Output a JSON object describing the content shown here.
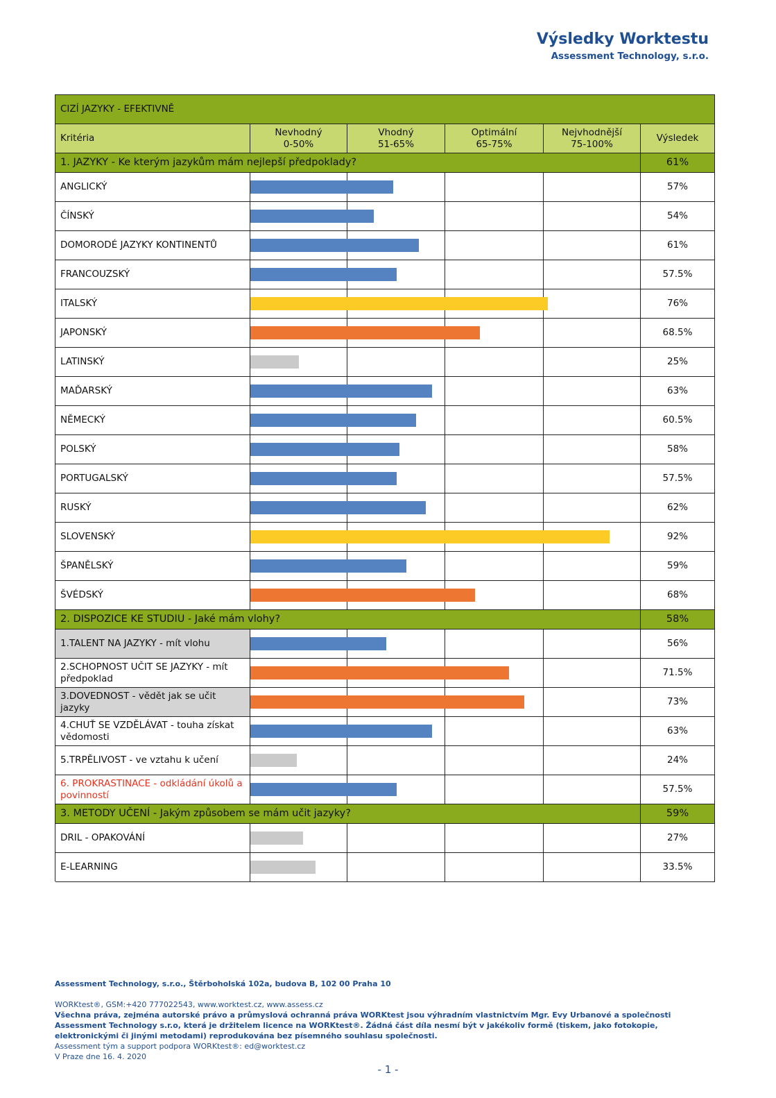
{
  "header": {
    "title": "Výsledky Worktestu",
    "subtitle": "Assessment Technology, s.r.o."
  },
  "table": {
    "title": "CIZÍ JAZYKY - EFEKTIVNĚ",
    "criteria": "Kritéria",
    "result": "Výsledek",
    "bands": [
      {
        "name": "Nevhodný",
        "range": "0-50%"
      },
      {
        "name": "Vhodný",
        "range": "51-65%"
      },
      {
        "name": "Optimální",
        "range": "65-75%"
      },
      {
        "name": "Nejvhodnější",
        "range": "75-100%"
      }
    ],
    "scale": [
      0,
      50,
      65,
      75,
      100
    ],
    "sections": [
      {
        "title": "1. JAZYKY - Ke kterým jazykům mám nejlepší předpoklady?",
        "value": 61,
        "label": "61%",
        "rows": [
          {
            "name": "ANGLICKÝ",
            "value": 57,
            "label": "57%",
            "color": "#5582c0"
          },
          {
            "name": "ČÍNSKÝ",
            "value": 54,
            "label": "54%",
            "color": "#5582c0"
          },
          {
            "name": "DOMORODÉ JAZYKY KONTINENTŮ",
            "value": 61,
            "label": "61%",
            "color": "#5582c0"
          },
          {
            "name": "FRANCOUZSKÝ",
            "value": 57.5,
            "label": "57.5%",
            "color": "#5582c0"
          },
          {
            "name": "ITALSKÝ",
            "value": 76,
            "label": "76%",
            "color": "#fdcb25"
          },
          {
            "name": "JAPONSKÝ",
            "value": 68.5,
            "label": "68.5%",
            "color": "#ed7732"
          },
          {
            "name": "LATINSKÝ",
            "value": 25,
            "label": "25%",
            "color": "#cacaca"
          },
          {
            "name": "MAĎARSKÝ",
            "value": 63,
            "label": "63%",
            "color": "#5582c0"
          },
          {
            "name": "NĚMECKÝ",
            "value": 60.5,
            "label": "60.5%",
            "color": "#5582c0"
          },
          {
            "name": "POLSKÝ",
            "value": 58,
            "label": "58%",
            "color": "#5582c0"
          },
          {
            "name": "PORTUGALSKÝ",
            "value": 57.5,
            "label": "57.5%",
            "color": "#5582c0"
          },
          {
            "name": "RUSKÝ",
            "value": 62,
            "label": "62%",
            "color": "#5582c0"
          },
          {
            "name": "SLOVENSKÝ",
            "value": 92,
            "label": "92%",
            "color": "#fdcb25"
          },
          {
            "name": "ŠPANĚLSKÝ",
            "value": 59,
            "label": "59%",
            "color": "#5582c0"
          },
          {
            "name": "ŠVÉDSKÝ",
            "value": 68,
            "label": "68%",
            "color": "#ed7732"
          }
        ]
      },
      {
        "title": "2. DISPOZICE KE STUDIU - Jaké mám vlohy?",
        "value": 58,
        "label": "58%",
        "rows": [
          {
            "name": "1.TALENT NA JAZYKY - mít vlohu",
            "value": 56,
            "label": "56%",
            "color": "#5582c0",
            "label_bg": "#d4d4d4"
          },
          {
            "name": "2.SCHOPNOST UČIT SE JAZYKY - mít předpoklad",
            "value": 71.5,
            "label": "71.5%",
            "color": "#ed7732"
          },
          {
            "name": "3.DOVEDNOST - vědět jak se učit jazyky",
            "value": 73,
            "label": "73%",
            "color": "#ed7732",
            "label_bg": "#d4d4d4"
          },
          {
            "name": "4.CHUŤ SE VZDĚLÁVAT - touha získat vědomosti",
            "value": 63,
            "label": "63%",
            "color": "#5582c0"
          },
          {
            "name": "5.TRPĚLIVOST - ve vztahu k učení",
            "value": 24,
            "label": "24%",
            "color": "#cacaca"
          },
          {
            "name": "6. PROKRASTINACE - odkládání úkolů a povinností",
            "value": 57.5,
            "label": "57.5%",
            "color": "#5582c0",
            "label_color": "#e8321e"
          }
        ]
      },
      {
        "title": "3. METODY UČENÍ - Jakým způsobem se mám učit jazyky?",
        "value": 59,
        "label": "59%",
        "rows": [
          {
            "name": "DRIL - OPAKOVÁNÍ",
            "value": 27,
            "label": "27%",
            "color": "#cacaca"
          },
          {
            "name": "E-LEARNING",
            "value": 33.5,
            "label": "33.5%",
            "color": "#cacaca"
          }
        ]
      }
    ]
  },
  "footer": {
    "address": "Assessment Technology, s.r.o., Štěrboholská 102a, budova B, 102 00 Praha 10",
    "contact": "WORKtest®, GSM:+420 777022543, www.worktest.cz, www.assess.cz",
    "rights": "Všechna práva, zejména autorské právo a průmyslová ochranná práva WORKtest jsou výhradním vlastnictvím Mgr. Evy Urbanové a společnosti Assessment Technology s.r.o, která je držitelem licence na WORKtest®. Žádná část díla nesmí být v jakékoliv formě (tiskem, jako fotokopie, elektronickými či jinými metodami) reprodukována bez písemného souhlasu společnosti.",
    "support": "Assessment tým a support podpora WORKtest®: ed@worktest.cz",
    "date": "V Praze dne 16. 4. 2020",
    "page": "- 1 -"
  }
}
